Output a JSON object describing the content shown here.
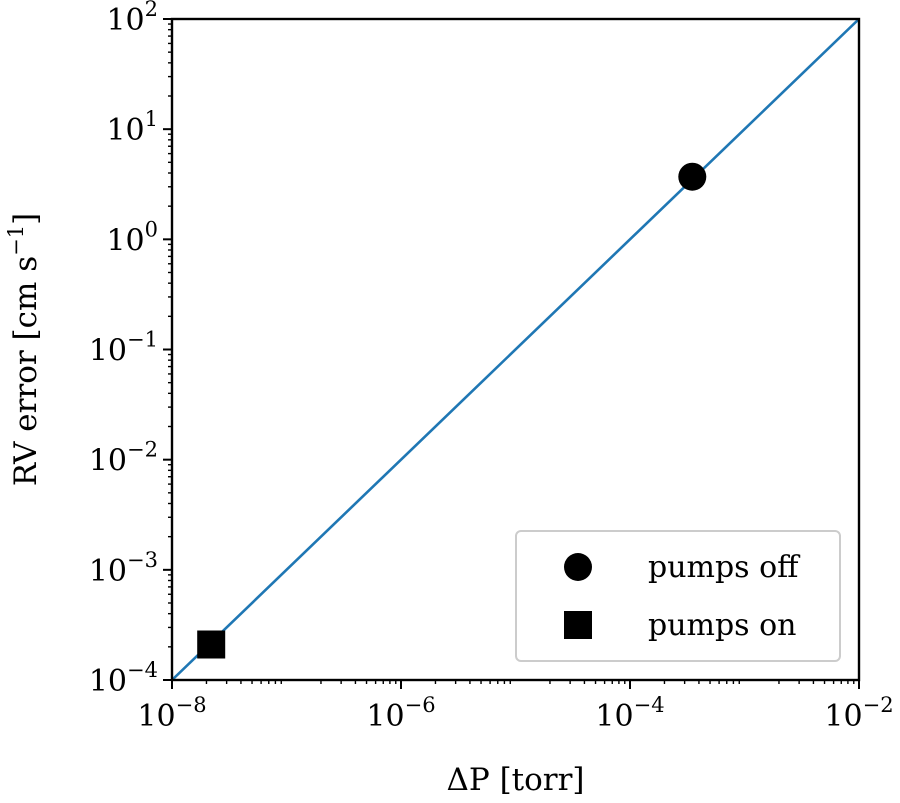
{
  "chart_data": {
    "type": "scatter",
    "xscale": "log",
    "yscale": "log",
    "xlim": [
      1e-08,
      0.01
    ],
    "ylim": [
      0.0001,
      100
    ],
    "xlabel": "ΔP [torr]",
    "ylabel_main": "RV error [cm s",
    "ylabel_exp": "−1",
    "ylabel_close": "]",
    "x_ticks": [
      {
        "value": 1e-08,
        "base": "10",
        "exp": "−8"
      },
      {
        "value": 1e-06,
        "base": "10",
        "exp": "−6"
      },
      {
        "value": 0.0001,
        "base": "10",
        "exp": "−4"
      },
      {
        "value": 0.01,
        "base": "10",
        "exp": "−2"
      }
    ],
    "y_ticks": [
      {
        "value": 0.0001,
        "base": "10",
        "exp": "−4"
      },
      {
        "value": 0.001,
        "base": "10",
        "exp": "−3"
      },
      {
        "value": 0.01,
        "base": "10",
        "exp": "−2"
      },
      {
        "value": 0.1,
        "base": "10",
        "exp": "−1"
      },
      {
        "value": 1,
        "base": "10",
        "exp": "0"
      },
      {
        "value": 10,
        "base": "10",
        "exp": "1"
      },
      {
        "value": 100,
        "base": "10",
        "exp": "2"
      }
    ],
    "line": {
      "x": [
        1e-08,
        0.01
      ],
      "y": [
        0.0001,
        100
      ],
      "color": "#1f77b4"
    },
    "series": [
      {
        "name": "pumps off",
        "marker": "circle",
        "x": [
          0.00035
        ],
        "y": [
          3.7
        ]
      },
      {
        "name": "pumps on",
        "marker": "square",
        "x": [
          2.2e-08
        ],
        "y": [
          0.00021
        ]
      }
    ],
    "legend_position": "lower-right",
    "marker_color": "#000000"
  }
}
